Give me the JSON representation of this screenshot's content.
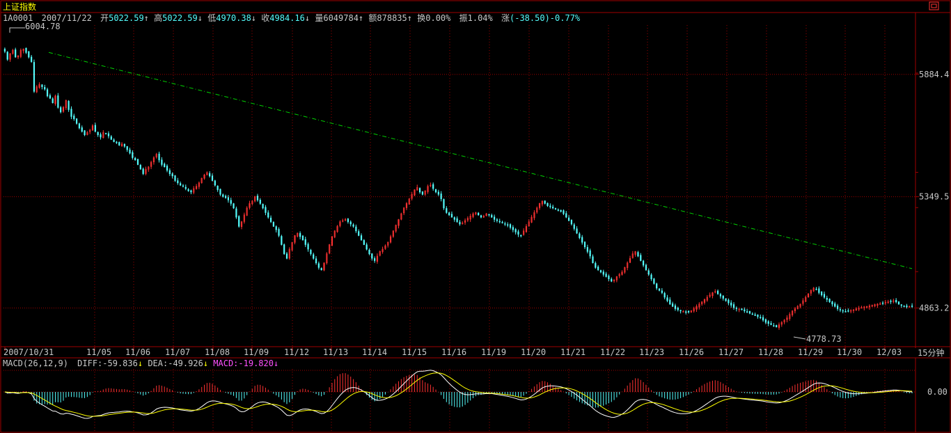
{
  "window": {
    "title": "上证指数",
    "restore_icon": "restore-icon"
  },
  "info_bar": {
    "code": "1A0001",
    "date": "2007/11/22",
    "open_label": "开",
    "open": "5022.59",
    "high_label": "高",
    "high": "5022.59",
    "low_label": "低",
    "low": "4970.38",
    "close_label": "收",
    "close": "4984.16",
    "volume_label": "量",
    "volume": "6049784",
    "amount_label": "额",
    "amount": "878835",
    "turnover_label": "换",
    "turnover": "0.00%",
    "amplitude_label": "振",
    "amplitude": "1.04%",
    "change_label": "涨",
    "change": "(-38.50)-0.77%"
  },
  "period": "15分钟",
  "colors": {
    "up": "#ff3232",
    "down": "#54fcfc",
    "grid": "#a00000",
    "trend": "#00d000",
    "diff": "#ffffff",
    "dea": "#ffff00",
    "macd_label": "#ff50ff"
  },
  "chart_data": {
    "type": "candlestick",
    "title": "上证指数",
    "price_axis_ticks": [
      "5884.4",
      "5349.5",
      "4863.2"
    ],
    "price_range": [
      4700,
      6100
    ],
    "annotations": {
      "max": "6004.78",
      "min": "4778.73"
    },
    "trendline": {
      "from": 6004.78,
      "to": 4950,
      "style": "dash-dot"
    },
    "x_tick_labels": [
      "2007/10/31",
      "11/05",
      "11/06",
      "11/07",
      "11/08",
      "11/09",
      "11/12",
      "11/13",
      "11/14",
      "11/15",
      "11/16",
      "11/19",
      "11/20",
      "11/21",
      "11/22",
      "11/23",
      "11/26",
      "11/27",
      "11/28",
      "11/29",
      "11/30",
      "12/03"
    ],
    "close_series": [
      5985,
      5950,
      5975,
      5990,
      5960,
      5965,
      5990,
      5995,
      5980,
      5960,
      5940,
      5810,
      5830,
      5840,
      5830,
      5820,
      5790,
      5780,
      5760,
      5790,
      5740,
      5720,
      5740,
      5770,
      5730,
      5700,
      5690,
      5670,
      5650,
      5635,
      5620,
      5630,
      5640,
      5660,
      5635,
      5620,
      5610,
      5630,
      5625,
      5615,
      5600,
      5590,
      5585,
      5575,
      5580,
      5570,
      5555,
      5540,
      5520,
      5510,
      5490,
      5470,
      5450,
      5470,
      5480,
      5500,
      5520,
      5535,
      5510,
      5490,
      5480,
      5465,
      5450,
      5440,
      5420,
      5410,
      5400,
      5395,
      5385,
      5375,
      5370,
      5385,
      5395,
      5410,
      5430,
      5445,
      5455,
      5440,
      5420,
      5400,
      5380,
      5360,
      5350,
      5345,
      5335,
      5320,
      5300,
      5260,
      5220,
      5240,
      5270,
      5300,
      5320,
      5330,
      5350,
      5335,
      5320,
      5300,
      5280,
      5260,
      5240,
      5220,
      5205,
      5180,
      5140,
      5100,
      5080,
      5120,
      5150,
      5180,
      5190,
      5175,
      5160,
      5140,
      5120,
      5100,
      5080,
      5060,
      5040,
      5030,
      5060,
      5100,
      5140,
      5175,
      5200,
      5220,
      5240,
      5245,
      5250,
      5240,
      5230,
      5220,
      5200,
      5180,
      5160,
      5140,
      5120,
      5100,
      5080,
      5070,
      5090,
      5110,
      5120,
      5135,
      5150,
      5175,
      5200,
      5225,
      5250,
      5275,
      5300,
      5320,
      5340,
      5360,
      5380,
      5390,
      5370,
      5360,
      5375,
      5395,
      5400,
      5385,
      5370,
      5360,
      5340,
      5300,
      5280,
      5270,
      5260,
      5250,
      5240,
      5230,
      5235,
      5245,
      5255,
      5265,
      5275,
      5280,
      5270,
      5260,
      5265,
      5275,
      5270,
      5260,
      5250,
      5245,
      5240,
      5235,
      5230,
      5225,
      5215,
      5205,
      5195,
      5185,
      5180,
      5200,
      5220,
      5240,
      5260,
      5280,
      5300,
      5320,
      5330,
      5320,
      5310,
      5305,
      5300,
      5295,
      5290,
      5285,
      5275,
      5260,
      5245,
      5230,
      5210,
      5190,
      5170,
      5150,
      5130,
      5110,
      5090,
      5060,
      5040,
      5030,
      5020,
      5010,
      5000,
      4990,
      4980,
      4985,
      5000,
      5010,
      5020,
      5040,
      5060,
      5080,
      5100,
      5110,
      5090,
      5070,
      5050,
      5030,
      5010,
      4990,
      4970,
      4950,
      4940,
      4930,
      4910,
      4895,
      4880,
      4870,
      4860,
      4855,
      4850,
      4848,
      4846,
      4845,
      4850,
      4860,
      4870,
      4880,
      4890,
      4900,
      4910,
      4920,
      4930,
      4935,
      4925,
      4915,
      4905,
      4895,
      4885,
      4875,
      4865,
      4860,
      4858,
      4855,
      4850,
      4845,
      4840,
      4835,
      4830,
      4825,
      4820,
      4810,
      4800,
      4795,
      4790,
      4785,
      4780,
      4790,
      4800,
      4810,
      4820,
      4835,
      4850,
      4860,
      4870,
      4880,
      4895,
      4910,
      4925,
      4940,
      4950,
      4945,
      4930,
      4920,
      4910,
      4900,
      4890,
      4880,
      4870,
      4860,
      4855,
      4850,
      4848,
      4850,
      4852,
      4855,
      4860,
      4862,
      4865,
      4868,
      4870,
      4872,
      4875,
      4878,
      4880,
      4882,
      4885,
      4888,
      4890,
      4892,
      4895,
      4890,
      4880,
      4875,
      4870,
      4868,
      4870,
      4872
    ],
    "macd": {
      "label": "MACD(26,12,9)",
      "diff_label": "DIFF:-59.836",
      "dea_label": "DEA:-49.926",
      "macd_label": "MACD:-19.820",
      "axis_zero": "0.00"
    }
  }
}
